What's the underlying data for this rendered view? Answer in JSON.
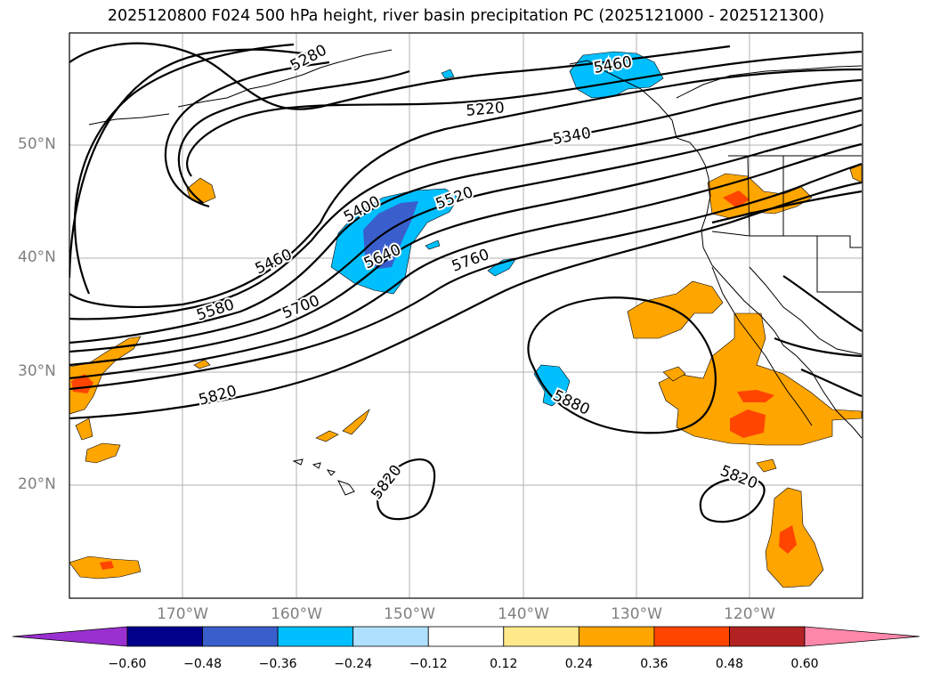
{
  "title": "2025120800 F024 500 hPa height, river basin precipitation PC (2025121000 - 2025121300)",
  "lat_labels": [
    "50°N",
    "40°N",
    "30°N",
    "20°N"
  ],
  "lon_labels": [
    "170°W",
    "160°W",
    "150°W",
    "140°W",
    "130°W",
    "120°W"
  ],
  "contour_labels": [
    "5280",
    "5220",
    "5340",
    "5400",
    "5520",
    "5460",
    "5640",
    "5760",
    "5580",
    "5700",
    "5820",
    "5880",
    "5820",
    "5820",
    "5460"
  ],
  "colorbar": {
    "ticks": [
      "−0.60",
      "−0.48",
      "−0.36",
      "−0.24",
      "−0.12",
      "0.12",
      "0.24",
      "0.36",
      "0.48",
      "0.60"
    ],
    "colors": [
      "#9b30d0",
      "#00008b",
      "#3a5fcd",
      "#00bfff",
      "#b0e0ff",
      "#ffffff",
      "#ffe98a",
      "#ffa500",
      "#ff4500",
      "#b22222",
      "#ff88aa"
    ]
  }
}
